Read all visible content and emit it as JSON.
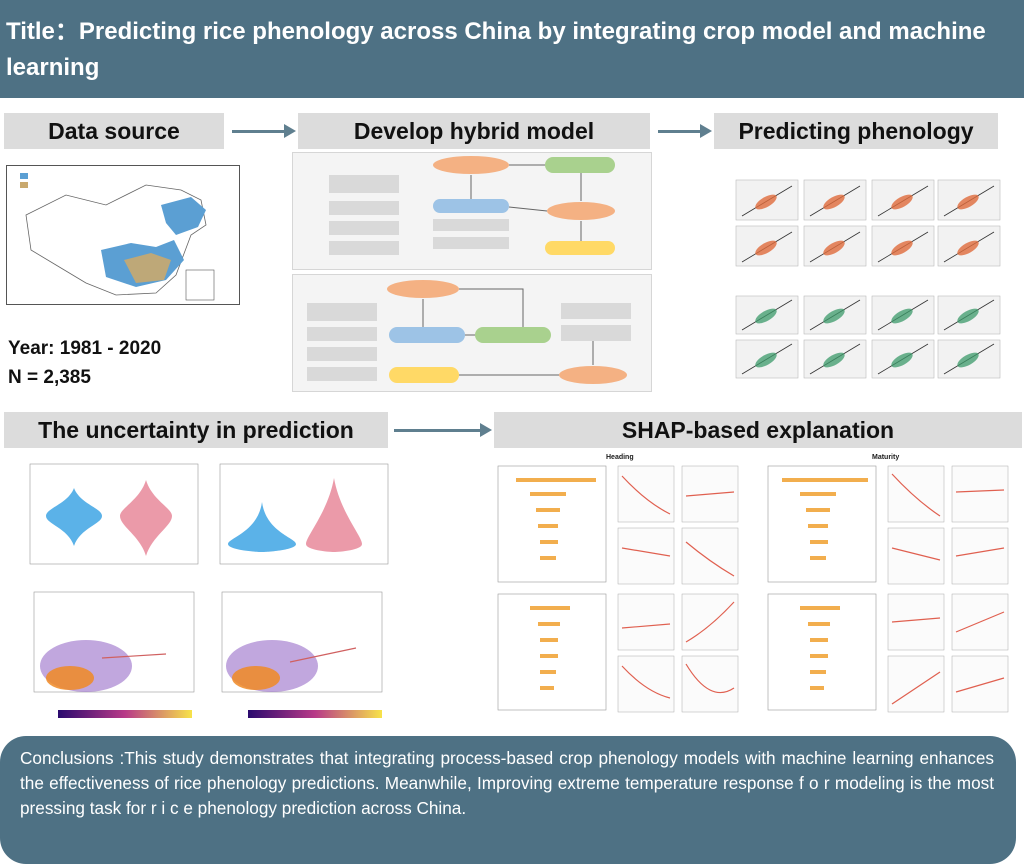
{
  "title": "Title：Predicting rice phenology across China by integrating crop model and machine learning",
  "sections": {
    "data_source": "Data source",
    "develop_model": "Develop hybrid model",
    "predicting": "Predicting phenology",
    "uncertainty": "The uncertainty in prediction",
    "shap": "SHAP-based  explanation"
  },
  "data_source": {
    "year": "Year: 1981 - 2020",
    "n": "N = 2,385"
  },
  "shap_panels": {
    "left": "Heading",
    "right": "Maturity"
  },
  "conclusion": "Conclusions :This study demonstrates that integrating process-based crop phenology models with machine learning enhances the effectiveness of rice phenology predictions. Meanwhile, Improving extreme temperature response  f o r modeling is the most pressing task for  r i c e phenology prediction across China.",
  "colors": {
    "banner": "#4e7184",
    "section_header": "#dcdcdc",
    "arrow": "#5f7f8f"
  }
}
